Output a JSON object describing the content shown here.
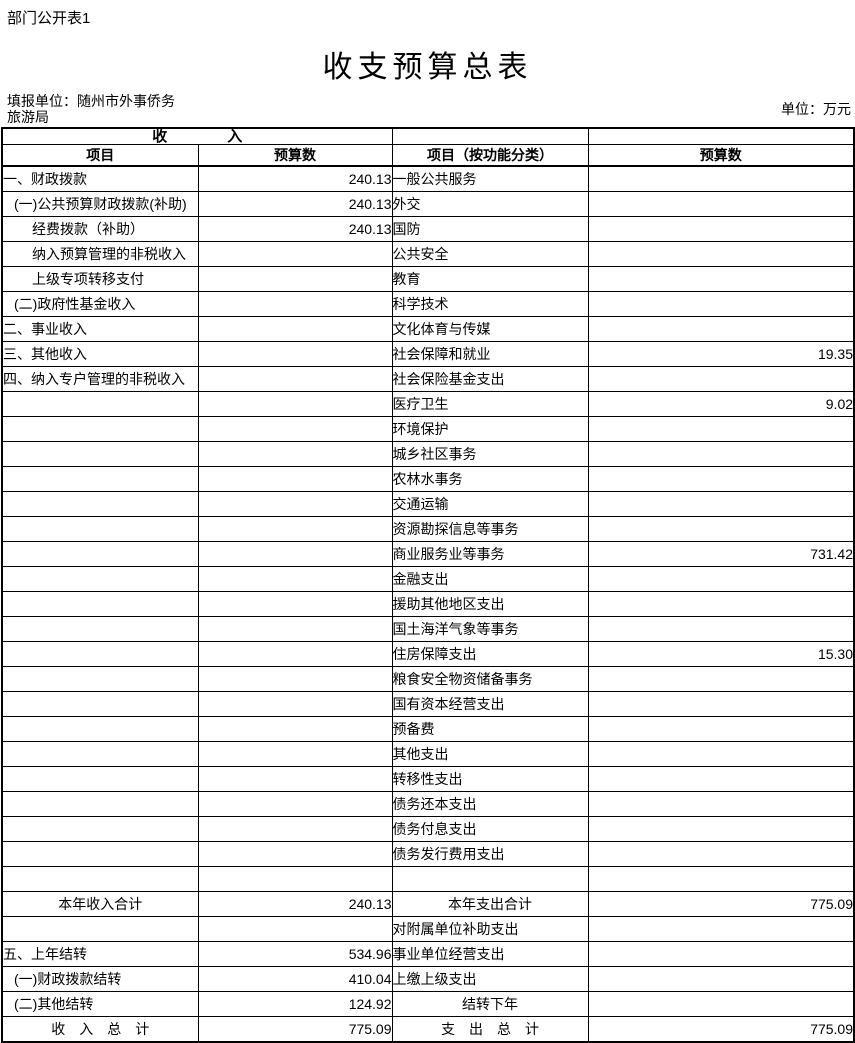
{
  "header": {
    "doc_label": "部门公开表1",
    "title": "收支预算总表",
    "reporting_unit_line1": "填报单位：随州市外事侨务",
    "reporting_unit_line2": "旅游局",
    "amount_unit": "单位：万元"
  },
  "table": {
    "income_header": "收　　　　入",
    "columns": [
      "项目",
      "预算数",
      "项目（按功能分类）",
      "预算数"
    ],
    "rows": [
      {
        "income_item": "一、财政拨款",
        "income_indent": 0,
        "income_amount": "240.13",
        "expense_item": "一般公共服务",
        "expense_amount": ""
      },
      {
        "income_item": "(一)公共预算财政拨款(补助)",
        "income_indent": 1,
        "income_amount": "240.13",
        "expense_item": "外交",
        "expense_amount": ""
      },
      {
        "income_item": "经费拨款（补助）",
        "income_indent": 2,
        "income_amount": "240.13",
        "expense_item": "国防",
        "expense_amount": ""
      },
      {
        "income_item": "纳入预算管理的非税收入",
        "income_indent": 2,
        "income_amount": "",
        "expense_item": "公共安全",
        "expense_amount": ""
      },
      {
        "income_item": "上级专项转移支付",
        "income_indent": 2,
        "income_amount": "",
        "expense_item": "教育",
        "expense_amount": ""
      },
      {
        "income_item": "(二)政府性基金收入",
        "income_indent": 1,
        "income_amount": "",
        "expense_item": "科学技术",
        "expense_amount": ""
      },
      {
        "income_item": "二、事业收入",
        "income_indent": 0,
        "income_amount": "",
        "expense_item": "文化体育与传媒",
        "expense_amount": ""
      },
      {
        "income_item": "三、其他收入",
        "income_indent": 0,
        "income_amount": "",
        "expense_item": "社会保障和就业",
        "expense_amount": "19.35"
      },
      {
        "income_item": "四、纳入专户管理的非税收入",
        "income_indent": 0,
        "income_amount": "",
        "expense_item": "社会保险基金支出",
        "expense_amount": ""
      },
      {
        "income_item": "",
        "income_amount": "",
        "expense_item": "医疗卫生",
        "expense_amount": "9.02"
      },
      {
        "income_item": "",
        "income_amount": "",
        "expense_item": "环境保护",
        "expense_amount": ""
      },
      {
        "income_item": "",
        "income_amount": "",
        "expense_item": "城乡社区事务",
        "expense_amount": ""
      },
      {
        "income_item": "",
        "income_amount": "",
        "expense_item": "农林水事务",
        "expense_amount": ""
      },
      {
        "income_item": "",
        "income_amount": "",
        "expense_item": "交通运输",
        "expense_amount": ""
      },
      {
        "income_item": "",
        "income_amount": "",
        "expense_item": "资源勘探信息等事务",
        "expense_amount": ""
      },
      {
        "income_item": "",
        "income_amount": "",
        "expense_item": "商业服务业等事务",
        "expense_amount": "731.42"
      },
      {
        "income_item": "",
        "income_amount": "",
        "expense_item": "金融支出",
        "expense_amount": ""
      },
      {
        "income_item": "",
        "income_amount": "",
        "expense_item": "援助其他地区支出",
        "expense_amount": ""
      },
      {
        "income_item": "",
        "income_amount": "",
        "expense_item": "国土海洋气象等事务",
        "expense_amount": ""
      },
      {
        "income_item": "",
        "income_amount": "",
        "expense_item": "住房保障支出",
        "expense_amount": "15.30"
      },
      {
        "income_item": "",
        "income_amount": "",
        "expense_item": "粮食安全物资储备事务",
        "expense_amount": ""
      },
      {
        "income_item": "",
        "income_amount": "",
        "expense_item": "国有资本经营支出",
        "expense_amount": ""
      },
      {
        "income_item": "",
        "income_amount": "",
        "expense_item": "预备费",
        "expense_amount": ""
      },
      {
        "income_item": "",
        "income_amount": "",
        "expense_item": "其他支出",
        "expense_amount": ""
      },
      {
        "income_item": "",
        "income_amount": "",
        "expense_item": "转移性支出",
        "expense_amount": ""
      },
      {
        "income_item": "",
        "income_amount": "",
        "expense_item": "债务还本支出",
        "expense_amount": ""
      },
      {
        "income_item": "",
        "income_amount": "",
        "expense_item": "债务付息支出",
        "expense_amount": ""
      },
      {
        "income_item": "",
        "income_amount": "",
        "expense_item": "债务发行费用支出",
        "expense_amount": ""
      },
      {
        "income_item": "",
        "income_amount": "",
        "expense_item": "",
        "expense_amount": ""
      },
      {
        "income_item": "本年收入合计",
        "income_style": "total",
        "income_amount": "240.13",
        "expense_item": "本年支出合计",
        "expense_style": "total",
        "expense_amount": "775.09"
      },
      {
        "income_item": "",
        "income_amount": "",
        "expense_item": "对附属单位补助支出",
        "expense_amount": ""
      },
      {
        "income_item": "五、上年结转",
        "income_indent": 0,
        "income_amount": "534.96",
        "expense_item": "事业单位经营支出",
        "expense_amount": ""
      },
      {
        "income_item": "(一)财政拨款结转",
        "income_indent": 1,
        "income_amount": "410.04",
        "expense_item": "上缴上级支出",
        "expense_amount": ""
      },
      {
        "income_item": "(二)其他结转",
        "income_indent": 1,
        "income_amount": "124.92",
        "expense_item": "结转下年",
        "expense_style": "total",
        "expense_amount": ""
      },
      {
        "income_item": "收　入　总　计",
        "income_style": "total",
        "income_amount": "775.09",
        "expense_item": "支　出　总　计",
        "expense_style": "total",
        "expense_amount": "775.09"
      }
    ]
  }
}
